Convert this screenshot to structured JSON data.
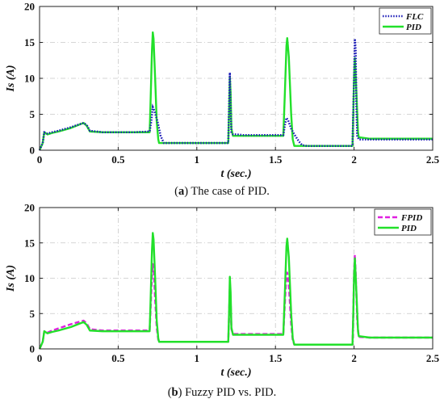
{
  "chart_data": [
    {
      "type": "line",
      "caption_label": "a",
      "caption_text": "The case of PID.",
      "xlabel": "t (sec.)",
      "ylabel": "Is (A)",
      "xlim": [
        0,
        2.5
      ],
      "ylim": [
        0,
        20
      ],
      "xticks": [
        "0",
        "0.5",
        "1",
        "1.5",
        "2",
        "2.5"
      ],
      "yticks": [
        "0",
        "5",
        "10",
        "15",
        "20"
      ],
      "grid": true,
      "legend_position": "top-right",
      "series": [
        {
          "name": "FLC",
          "color": "#1f1fb8",
          "style": "dotted",
          "x": [
            0,
            0.02,
            0.03,
            0.05,
            0.08,
            0.12,
            0.2,
            0.28,
            0.3,
            0.32,
            0.4,
            0.5,
            0.6,
            0.7,
            0.71,
            0.72,
            0.73,
            0.75,
            0.77,
            0.79,
            0.8,
            0.9,
            1.0,
            1.1,
            1.2,
            1.205,
            1.21,
            1.215,
            1.22,
            1.23,
            1.25,
            1.3,
            1.4,
            1.5,
            1.55,
            1.56,
            1.57,
            1.58,
            1.6,
            1.62,
            1.65,
            1.67,
            1.7,
            1.8,
            1.9,
            1.99,
            2.0,
            2.005,
            2.01,
            2.015,
            2.02,
            2.03,
            2.05,
            2.1,
            2.2,
            2.3,
            2.4,
            2.5
          ],
          "y": [
            0,
            1.0,
            2.5,
            2.3,
            2.5,
            2.7,
            3.2,
            3.8,
            3.5,
            2.7,
            2.5,
            2.5,
            2.5,
            2.6,
            4.0,
            6.0,
            5.5,
            4.0,
            2.0,
            1.0,
            1.0,
            1.0,
            1.0,
            1.0,
            1.0,
            6.0,
            10.8,
            6.0,
            2.5,
            2.2,
            2.2,
            2.1,
            2.1,
            2.1,
            2.1,
            3.5,
            4.5,
            4.2,
            3.0,
            2.2,
            1.2,
            0.7,
            0.6,
            0.6,
            0.6,
            0.6,
            10.0,
            15.5,
            14.0,
            6.0,
            2.0,
            1.5,
            1.5,
            1.5,
            1.5,
            1.5,
            1.5,
            1.5
          ]
        },
        {
          "name": "PID",
          "color": "#22e02a",
          "style": "solid",
          "x": [
            0,
            0.02,
            0.03,
            0.05,
            0.08,
            0.12,
            0.2,
            0.28,
            0.3,
            0.32,
            0.4,
            0.5,
            0.6,
            0.7,
            0.705,
            0.715,
            0.72,
            0.725,
            0.735,
            0.745,
            0.755,
            0.76,
            0.8,
            0.9,
            1.0,
            1.1,
            1.2,
            1.205,
            1.21,
            1.215,
            1.22,
            1.23,
            1.25,
            1.3,
            1.4,
            1.5,
            1.55,
            1.56,
            1.57,
            1.575,
            1.585,
            1.6,
            1.61,
            1.62,
            1.7,
            1.8,
            1.9,
            1.99,
            1.995,
            2.0,
            2.005,
            2.015,
            2.025,
            2.03,
            2.1,
            2.2,
            2.3,
            2.4,
            2.5
          ],
          "y": [
            0,
            1.0,
            2.5,
            2.2,
            2.4,
            2.6,
            3.1,
            3.8,
            3.4,
            2.6,
            2.5,
            2.5,
            2.5,
            2.5,
            6.0,
            14.0,
            16.4,
            15.5,
            10.0,
            4.0,
            1.5,
            1.0,
            1.0,
            1.0,
            1.0,
            1.0,
            1.0,
            5.0,
            10.2,
            8.0,
            3.0,
            2.0,
            2.0,
            2.0,
            2.0,
            2.0,
            2.0,
            8.0,
            14.5,
            15.6,
            13.0,
            5.0,
            1.5,
            0.6,
            0.6,
            0.6,
            0.6,
            0.6,
            5.0,
            10.5,
            12.8,
            8.0,
            2.5,
            1.8,
            1.6,
            1.6,
            1.6,
            1.6,
            1.6
          ]
        }
      ]
    },
    {
      "type": "line",
      "caption_label": "b",
      "caption_text": "Fuzzy PID vs. PID.",
      "xlabel": "t (sec.)",
      "ylabel": "Is (A)",
      "xlim": [
        0,
        2.5
      ],
      "ylim": [
        0,
        20
      ],
      "xticks": [
        "0",
        "0.5",
        "1",
        "1.5",
        "2",
        "2.5"
      ],
      "yticks": [
        "0",
        "5",
        "10",
        "15",
        "20"
      ],
      "grid": true,
      "legend_position": "top-right",
      "series": [
        {
          "name": "FPID",
          "color": "#e020e0",
          "style": "dashed",
          "x": [
            0,
            0.02,
            0.03,
            0.05,
            0.08,
            0.12,
            0.2,
            0.28,
            0.3,
            0.32,
            0.4,
            0.5,
            0.6,
            0.7,
            0.705,
            0.715,
            0.72,
            0.725,
            0.735,
            0.745,
            0.755,
            0.76,
            0.8,
            0.9,
            1.0,
            1.1,
            1.2,
            1.205,
            1.21,
            1.215,
            1.22,
            1.23,
            1.25,
            1.3,
            1.4,
            1.5,
            1.55,
            1.56,
            1.57,
            1.575,
            1.585,
            1.6,
            1.61,
            1.62,
            1.7,
            1.8,
            1.9,
            1.99,
            1.995,
            2.0,
            2.005,
            2.01,
            2.02,
            2.03,
            2.1,
            2.2,
            2.3,
            2.4,
            2.5
          ],
          "y": [
            0,
            1.0,
            2.5,
            2.3,
            2.6,
            2.9,
            3.5,
            4.0,
            3.6,
            2.8,
            2.6,
            2.6,
            2.6,
            2.6,
            5.0,
            10.5,
            12.0,
            11.5,
            7.0,
            3.0,
            1.3,
            1.0,
            1.0,
            1.0,
            1.0,
            1.0,
            1.0,
            4.5,
            9.0,
            7.0,
            2.8,
            2.1,
            2.1,
            2.1,
            2.1,
            2.1,
            2.1,
            6.5,
            10.5,
            10.8,
            9.0,
            3.5,
            1.2,
            0.6,
            0.6,
            0.6,
            0.6,
            0.6,
            5.0,
            11.0,
            13.3,
            11.0,
            4.0,
            1.7,
            1.6,
            1.6,
            1.6,
            1.6,
            1.6
          ]
        },
        {
          "name": "PID",
          "color": "#22e02a",
          "style": "solid",
          "x": [
            0,
            0.02,
            0.03,
            0.05,
            0.08,
            0.12,
            0.2,
            0.28,
            0.3,
            0.32,
            0.4,
            0.5,
            0.6,
            0.7,
            0.705,
            0.715,
            0.72,
            0.725,
            0.735,
            0.745,
            0.755,
            0.76,
            0.8,
            0.9,
            1.0,
            1.1,
            1.2,
            1.205,
            1.21,
            1.215,
            1.22,
            1.23,
            1.25,
            1.3,
            1.4,
            1.5,
            1.55,
            1.56,
            1.57,
            1.575,
            1.585,
            1.6,
            1.61,
            1.62,
            1.7,
            1.8,
            1.9,
            1.99,
            1.995,
            2.0,
            2.005,
            2.015,
            2.025,
            2.03,
            2.1,
            2.2,
            2.3,
            2.4,
            2.5
          ],
          "y": [
            0,
            1.0,
            2.5,
            2.2,
            2.4,
            2.6,
            3.1,
            3.8,
            3.4,
            2.6,
            2.5,
            2.5,
            2.5,
            2.5,
            6.0,
            14.0,
            16.4,
            15.5,
            10.0,
            4.0,
            1.5,
            1.0,
            1.0,
            1.0,
            1.0,
            1.0,
            1.0,
            5.0,
            10.2,
            8.0,
            3.0,
            2.0,
            2.0,
            2.0,
            2.0,
            2.0,
            2.0,
            8.0,
            14.5,
            15.6,
            13.0,
            5.0,
            1.5,
            0.6,
            0.6,
            0.6,
            0.6,
            0.6,
            5.0,
            10.5,
            12.8,
            8.0,
            2.5,
            1.8,
            1.6,
            1.6,
            1.6,
            1.6,
            1.6
          ]
        }
      ]
    }
  ]
}
